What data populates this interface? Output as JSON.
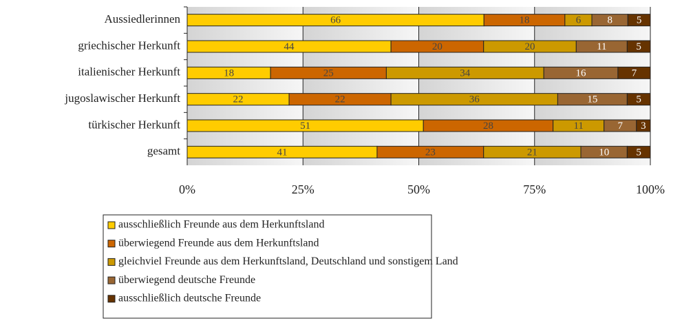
{
  "chart_data": {
    "type": "bar",
    "orientation": "horizontal",
    "stacked": "percent",
    "categories": [
      "Aussiedlerinnen",
      "griechischer Herkunft",
      "italienischer Herkunft",
      "jugoslawischer Herkunft",
      "türkischer Herkunft",
      "gesamt"
    ],
    "series": [
      {
        "name": "ausschließlich Freunde aus dem Herkunftsland",
        "color": "#ffcc00",
        "values": [
          66,
          44,
          18,
          22,
          51,
          41
        ]
      },
      {
        "name": "überwiegend Freunde aus dem Herkunftsland",
        "color": "#cc6600",
        "values": [
          18,
          20,
          25,
          22,
          28,
          23
        ]
      },
      {
        "name": "gleichviel Freunde aus dem Herkunftsland, Deutschland und sonstigem Land",
        "color": "#cc9900",
        "values": [
          6,
          20,
          34,
          36,
          11,
          21
        ]
      },
      {
        "name": "überwiegend deutsche Freunde",
        "color": "#996633",
        "values": [
          8,
          11,
          16,
          15,
          7,
          10
        ]
      },
      {
        "name": "ausschließlich deutsche Freunde",
        "color": "#663300",
        "values": [
          5,
          5,
          7,
          5,
          3,
          5
        ]
      }
    ],
    "xlim": [
      0,
      100
    ],
    "xticks": [
      {
        "value": 0,
        "label": "0%"
      },
      {
        "value": 25,
        "label": "25%"
      },
      {
        "value": 50,
        "label": "50%"
      },
      {
        "value": 75,
        "label": "75%"
      },
      {
        "value": 100,
        "label": "100%"
      }
    ],
    "grid": true,
    "legend": "bottom"
  }
}
